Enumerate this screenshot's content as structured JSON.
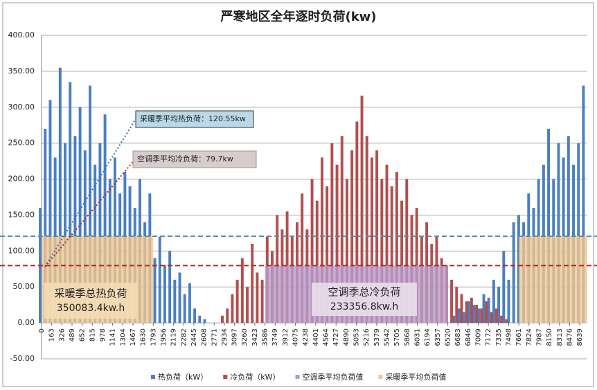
{
  "chart_data": {
    "type": "bar",
    "title": "严寒地区全年逐时负荷(kw)",
    "xlim": [
      0,
      8760
    ],
    "xticks": [
      0,
      163,
      326,
      489,
      652,
      815,
      978,
      1141,
      1304,
      1467,
      1630,
      1793,
      1956,
      2119,
      2282,
      2445,
      2608,
      2771,
      2934,
      3097,
      3260,
      3423,
      3586,
      3749,
      3912,
      4075,
      4238,
      4401,
      4564,
      4727,
      4890,
      5053,
      5216,
      5379,
      5542,
      5705,
      5868,
      6031,
      6194,
      6357,
      6520,
      6683,
      6846,
      7009,
      7172,
      7335,
      7498,
      7661,
      7824,
      7987,
      8150,
      8313,
      8476,
      8639
    ],
    "ylim": [
      -50,
      400
    ],
    "yticks": [
      {
        "value": -50,
        "label": "-50.00"
      },
      {
        "value": 0,
        "label": "0.00"
      },
      {
        "value": 50,
        "label": "50.00"
      },
      {
        "value": 100,
        "label": "100.00"
      },
      {
        "value": 150,
        "label": "150.00"
      },
      {
        "value": 200,
        "label": "200.00"
      },
      {
        "value": 250,
        "label": "250.00"
      },
      {
        "value": 300,
        "label": "300.00"
      },
      {
        "value": 350,
        "label": "350.00"
      },
      {
        "value": 400,
        "label": "400.00"
      }
    ],
    "grid": true,
    "x": [
      0,
      80,
      160,
      240,
      320,
      400,
      480,
      560,
      640,
      720,
      800,
      880,
      960,
      1040,
      1120,
      1200,
      1280,
      1360,
      1440,
      1520,
      1600,
      1680,
      1760,
      1840,
      1920,
      2000,
      2080,
      2160,
      2240,
      2320,
      2400,
      2480,
      2560,
      2640,
      2720,
      2800,
      2880,
      2960,
      3040,
      3120,
      3200,
      3280,
      3360,
      3440,
      3520,
      3600,
      3680,
      3760,
      3840,
      3920,
      4000,
      4080,
      4160,
      4240,
      4320,
      4400,
      4480,
      4560,
      4640,
      4720,
      4800,
      4880,
      4960,
      5040,
      5120,
      5200,
      5280,
      5360,
      5440,
      5520,
      5600,
      5680,
      5760,
      5840,
      5920,
      6000,
      6080,
      6160,
      6240,
      6320,
      6400,
      6480,
      6560,
      6640,
      6720,
      6800,
      6880,
      6960,
      7040,
      7120,
      7200,
      7280,
      7360,
      7440,
      7520,
      7600,
      7680,
      7760,
      7840,
      7920,
      8000,
      8080,
      8160,
      8240,
      8320,
      8400,
      8480,
      8560,
      8640,
      8720
    ],
    "series": [
      {
        "name": "热负荷（kW）",
        "color": "#4a7fc1",
        "values": [
          160,
          270,
          310,
          230,
          355,
          250,
          335,
          260,
          300,
          240,
          330,
          220,
          250,
          290,
          200,
          230,
          180,
          210,
          190,
          160,
          200,
          140,
          180,
          90,
          120,
          80,
          100,
          60,
          70,
          40,
          55,
          20,
          10,
          5,
          0,
          0,
          0,
          0,
          0,
          0,
          0,
          0,
          0,
          0,
          0,
          0,
          0,
          0,
          0,
          0,
          0,
          0,
          0,
          0,
          0,
          0,
          0,
          0,
          0,
          0,
          0,
          0,
          0,
          0,
          0,
          0,
          0,
          0,
          0,
          0,
          0,
          0,
          0,
          0,
          0,
          0,
          0,
          0,
          0,
          0,
          0,
          0,
          0,
          10,
          20,
          15,
          30,
          25,
          20,
          40,
          35,
          60,
          50,
          100,
          60,
          140,
          150,
          140,
          180,
          160,
          200,
          220,
          270,
          200,
          250,
          230,
          260,
          220,
          250,
          330
        ]
      },
      {
        "name": "冷负荷（kW）",
        "color": "#b24f4f",
        "values": [
          0,
          0,
          0,
          0,
          0,
          0,
          0,
          0,
          0,
          0,
          0,
          0,
          0,
          0,
          0,
          0,
          0,
          0,
          0,
          0,
          0,
          0,
          0,
          0,
          0,
          0,
          0,
          0,
          0,
          0,
          0,
          0,
          0,
          0,
          0,
          0,
          10,
          20,
          40,
          60,
          90,
          50,
          110,
          70,
          60,
          120,
          100,
          150,
          130,
          155,
          120,
          140,
          180,
          130,
          200,
          170,
          230,
          190,
          250,
          220,
          260,
          200,
          240,
          280,
          316,
          260,
          230,
          240,
          200,
          220,
          190,
          210,
          170,
          200,
          150,
          160,
          120,
          140,
          110,
          120,
          90,
          80,
          60,
          50,
          40,
          30,
          35,
          25,
          20,
          30,
          15,
          20,
          10,
          5,
          0,
          0,
          0,
          0,
          0,
          0,
          0,
          0,
          0,
          0,
          0,
          0,
          0,
          0,
          0,
          0
        ]
      }
    ],
    "averages": [
      {
        "name": "空调季平均负荷值",
        "color": "#b89ccb",
        "line_color": "#b5281f",
        "value": 79.7,
        "ranges": [
          [
            3586,
            6520
          ]
        ]
      },
      {
        "name": "采暖季平均负荷值",
        "color": "#f0c890",
        "line_color": "#5f8c9c",
        "value": 120.55,
        "ranges": [
          [
            0,
            1793
          ],
          [
            7661,
            8760
          ]
        ]
      }
    ],
    "annotations": [
      "采暖季平均热负荷：120.55kw",
      "空调季平均冷负荷：79.7kw",
      "采暖季总热负荷",
      "350083.4kw.h",
      "空调季总冷负荷",
      "233356.8kw.h"
    ]
  }
}
